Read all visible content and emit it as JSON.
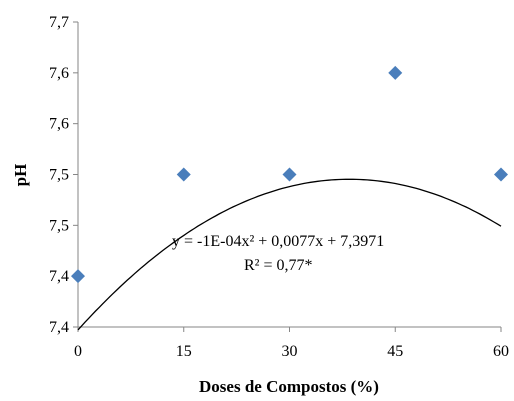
{
  "chart_data": {
    "type": "scatter",
    "xlabel": "Doses de Compostos  (%)",
    "ylabel": "pH",
    "x_ticks": [
      "0",
      "15",
      "30",
      "45",
      "60"
    ],
    "x_tick_values": [
      0,
      15,
      30,
      45,
      60
    ],
    "y_ticks": [
      "7,4",
      "7,4",
      "7,5",
      "7,5",
      "7,6",
      "7,6",
      "7,7"
    ],
    "y_tick_values": [
      7.4,
      7.45,
      7.5,
      7.55,
      7.6,
      7.65,
      7.7
    ],
    "xlim": [
      0,
      60
    ],
    "ylim": [
      7.4,
      7.7
    ],
    "grid": false,
    "series": [
      {
        "type": "scatter",
        "marker": "diamond",
        "color": "#4a7ebb",
        "x": [
          0,
          15,
          30,
          45,
          60
        ],
        "y": [
          7.45,
          7.55,
          7.55,
          7.65,
          7.55
        ]
      }
    ],
    "trendline": {
      "type": "polynomial",
      "order": 2,
      "coefficients": [
        -0.0001,
        0.0077,
        7.3971
      ],
      "color": "#000000",
      "equation": "y = -1E-04x²  + 0,0077x  + 7,3971",
      "r2": "R² = 0,77*"
    }
  }
}
